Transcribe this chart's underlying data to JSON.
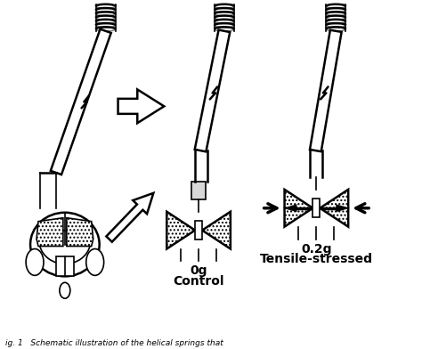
{
  "bg_color": "#ffffff",
  "line_color": "#000000",
  "label_0g": "0g",
  "label_02g": "0.2g",
  "label_control": "Control",
  "label_tensile": "Tensile-stressed",
  "font_size_label": 10,
  "fig_width": 4.74,
  "fig_height": 3.92,
  "dpi": 100
}
